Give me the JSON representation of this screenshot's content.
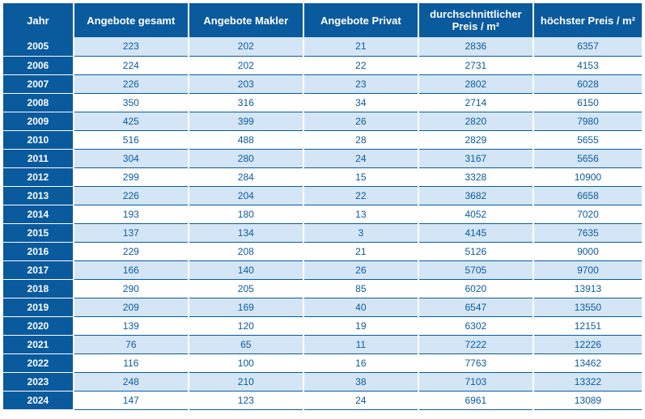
{
  "table": {
    "columns": [
      "Jahr",
      "Angebote gesamt",
      "Angebote Makler",
      "Angebote Privat",
      "durchschnittlicher Preis / m²",
      "höchster Preis / m²"
    ],
    "rows": [
      [
        "2005",
        "223",
        "202",
        "21",
        "2836",
        "6357"
      ],
      [
        "2006",
        "224",
        "202",
        "22",
        "2731",
        "4153"
      ],
      [
        "2007",
        "226",
        "203",
        "23",
        "2802",
        "6028"
      ],
      [
        "2008",
        "350",
        "316",
        "34",
        "2714",
        "6150"
      ],
      [
        "2009",
        "425",
        "399",
        "26",
        "2820",
        "7980"
      ],
      [
        "2010",
        "516",
        "488",
        "28",
        "2829",
        "5655"
      ],
      [
        "2011",
        "304",
        "280",
        "24",
        "3167",
        "5656"
      ],
      [
        "2012",
        "299",
        "284",
        "15",
        "3328",
        "10900"
      ],
      [
        "2013",
        "226",
        "204",
        "22",
        "3682",
        "6658"
      ],
      [
        "2014",
        "193",
        "180",
        "13",
        "4052",
        "7020"
      ],
      [
        "2015",
        "137",
        "134",
        "3",
        "4145",
        "7635"
      ],
      [
        "2016",
        "229",
        "208",
        "21",
        "5126",
        "9000"
      ],
      [
        "2017",
        "166",
        "140",
        "26",
        "5705",
        "9700"
      ],
      [
        "2018",
        "290",
        "205",
        "85",
        "6020",
        "13913"
      ],
      [
        "2019",
        "209",
        "169",
        "40",
        "6547",
        "13550"
      ],
      [
        "2020",
        "139",
        "120",
        "19",
        "6302",
        "12151"
      ],
      [
        "2021",
        "76",
        "65",
        "11",
        "7222",
        "12226"
      ],
      [
        "2022",
        "116",
        "100",
        "16",
        "7763",
        "13462"
      ],
      [
        "2023",
        "248",
        "210",
        "38",
        "7103",
        "13322"
      ],
      [
        "2024",
        "147",
        "123",
        "24",
        "6961",
        "13089"
      ]
    ],
    "header_bg": "#0a5a9e",
    "header_fg": "#ffffff",
    "row_even_bg": "#d4e6f5",
    "row_odd_bg": "#ffffff",
    "cell_fg": "#0a5a9e",
    "border_color": "#0a5a9e",
    "font_size_header": 13,
    "font_size_cell": 12
  }
}
